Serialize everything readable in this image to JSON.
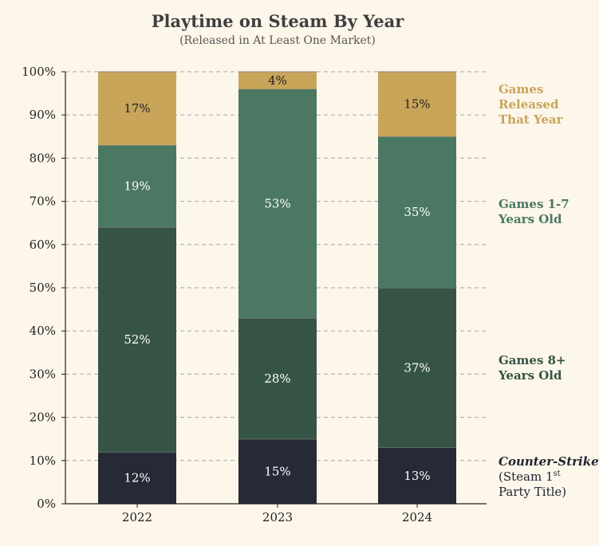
{
  "chart_data": {
    "type": "bar",
    "stacked": true,
    "title": "Playtime on Steam By Year",
    "subtitle": "(Released in At Least One Market)",
    "categories": [
      "2022",
      "2023",
      "2024"
    ],
    "ylim": [
      0,
      100
    ],
    "yticks": [
      "0%",
      "10%",
      "20%",
      "30%",
      "40%",
      "50%",
      "60%",
      "70%",
      "80%",
      "90%",
      "100%"
    ],
    "grid": true,
    "legend_position": "right",
    "series": [
      {
        "key": "cs",
        "values": [
          12,
          15,
          13
        ],
        "labels": [
          "12%",
          "15%",
          "13%"
        ],
        "color": "#252a36",
        "text_color": "#ffffff",
        "legend_lines": [
          [
            "Counter-Strike"
          ],
          [
            "(Steam 1",
            "st"
          ],
          [
            "Party Title)"
          ]
        ]
      },
      {
        "key": "old",
        "values": [
          52,
          28,
          37
        ],
        "labels": [
          "52%",
          "28%",
          "37%"
        ],
        "color": "#365446",
        "text_color": "#ffffff",
        "legend_lines": [
          "Games 8+",
          "Years Old"
        ],
        "legend_color": "#365446"
      },
      {
        "key": "mid",
        "values": [
          19,
          53,
          35
        ],
        "labels": [
          "19%",
          "53%",
          "35%"
        ],
        "color": "#4b7862",
        "text_color": "#ffffff",
        "legend_lines": [
          "Games 1-7",
          "Years Old"
        ],
        "legend_color": "#4b7862"
      },
      {
        "key": "new",
        "values": [
          17,
          4,
          15
        ],
        "labels": [
          "17%",
          "4%",
          "15%"
        ],
        "color": "#c9a55a",
        "text_color": "#222222",
        "legend_lines": [
          "Games",
          "Released",
          "That Year"
        ],
        "legend_color": "#c9a55a"
      }
    ]
  }
}
